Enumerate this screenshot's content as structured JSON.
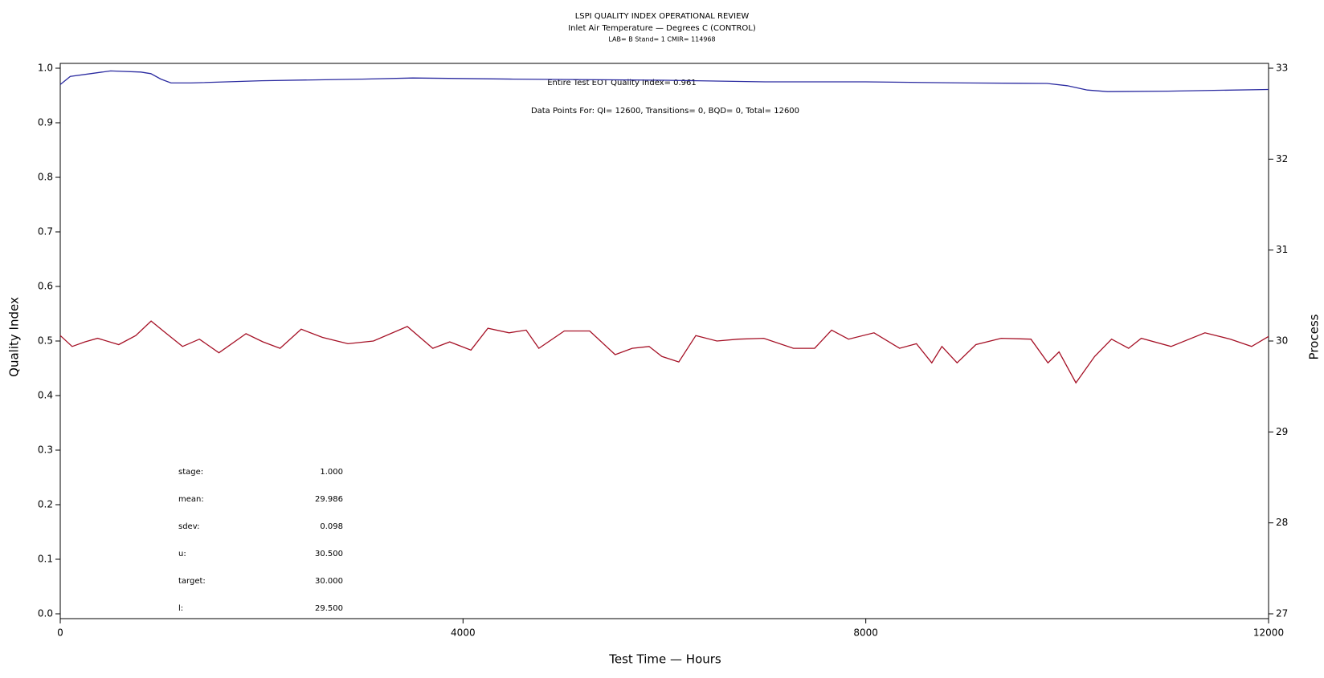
{
  "chart_data": {
    "type": "line",
    "title": "LSPI QUALITY INDEX OPERATIONAL REVIEW",
    "subtitle": "Inlet Air Temperature — Degrees C (CONTROL)",
    "info": "LAB= B Stand= 1 CMIR= 114968",
    "annotations": [
      "Entire Test EOT Quality Index=   0.961",
      "Data Points For: QI= 12600, Transitions=     0, BQD=     0, Total= 12600"
    ],
    "stats": [
      {
        "label": "stage:",
        "value": "1.000"
      },
      {
        "label": "mean:",
        "value": "29.986"
      },
      {
        "label": "sdev:",
        "value": "0.098"
      },
      {
        "label": "u:",
        "value": "30.500"
      },
      {
        "label": "target:",
        "value": "30.000"
      },
      {
        "label": "l:",
        "value": "29.500"
      }
    ],
    "xlabel": "Test Time — Hours",
    "ylabel": "Quality Index",
    "y2label": "Process",
    "xlim": [
      0,
      12000
    ],
    "xticks": [
      0,
      4000,
      8000,
      12000
    ],
    "ylim": [
      0,
      1
    ],
    "yticks": [
      {
        "value": 0,
        "label": "0.0"
      },
      {
        "value": 0.1,
        "label": "0.1"
      },
      {
        "value": 0.2,
        "label": "0.2"
      },
      {
        "value": 0.3,
        "label": "0.3"
      },
      {
        "value": 0.4,
        "label": "0.4"
      },
      {
        "value": 0.5,
        "label": "0.5"
      },
      {
        "value": 0.6,
        "label": "0.6"
      },
      {
        "value": 0.7,
        "label": "0.7"
      },
      {
        "value": 0.8,
        "label": "0.8"
      },
      {
        "value": 0.9,
        "label": "0.9"
      },
      {
        "value": 1,
        "label": "1.0"
      }
    ],
    "y2lim": [
      27,
      33
    ],
    "y2ticks": [
      27,
      28,
      29,
      30,
      31,
      32,
      33
    ],
    "series": [
      {
        "color": "#2a2aa0",
        "axis": "y",
        "x": [
          0,
          100,
          300,
          500,
          800,
          900,
          1000,
          1100,
          1300,
          2000,
          3000,
          3500,
          4500,
          6000,
          7000,
          8000,
          9000,
          9800,
          10000,
          10200,
          10400,
          11000,
          12000
        ],
        "values": [
          0.97,
          0.985,
          0.99,
          0.995,
          0.993,
          0.99,
          0.98,
          0.973,
          0.973,
          0.977,
          0.98,
          0.982,
          0.98,
          0.978,
          0.975,
          0.975,
          0.973,
          0.972,
          0.968,
          0.96,
          0.957,
          0.958,
          0.961
        ]
      },
      {
        "color": "#a51025",
        "axis": "y2",
        "x": [
          0,
          118,
          244,
          371,
          581,
          750,
          902,
          1045,
          1214,
          1382,
          1576,
          1845,
          2014,
          2183,
          2393,
          2604,
          2857,
          3110,
          3447,
          3700,
          3868,
          4079,
          4247,
          4458,
          4627,
          4753,
          5006,
          5258,
          5511,
          5680,
          5848,
          5975,
          6143,
          6312,
          6522,
          6733,
          6986,
          7281,
          7492,
          7660,
          7829,
          8082,
          8335,
          8503,
          8655,
          8756,
          8907,
          9093,
          9345,
          9640,
          9809,
          9919,
          10087,
          10273,
          10441,
          10610,
          10736,
          11031,
          11368,
          11621,
          11832,
          12000
        ],
        "values": [
          30.06,
          29.94,
          29.99,
          30.03,
          29.96,
          30.06,
          30.22,
          30.09,
          29.94,
          30.02,
          29.87,
          30.08,
          29.99,
          29.92,
          30.13,
          30.04,
          29.97,
          30.0,
          30.16,
          29.92,
          29.99,
          29.9,
          30.14,
          30.09,
          30.12,
          29.92,
          30.11,
          30.11,
          29.85,
          29.92,
          29.94,
          29.83,
          29.77,
          30.06,
          30.0,
          30.02,
          30.03,
          29.92,
          29.92,
          30.12,
          30.02,
          30.09,
          29.92,
          29.97,
          29.76,
          29.94,
          29.76,
          29.96,
          30.03,
          30.02,
          29.76,
          29.88,
          29.54,
          29.83,
          30.02,
          29.92,
          30.03,
          29.94,
          30.09,
          30.02,
          29.94,
          30.05
        ]
      }
    ]
  }
}
